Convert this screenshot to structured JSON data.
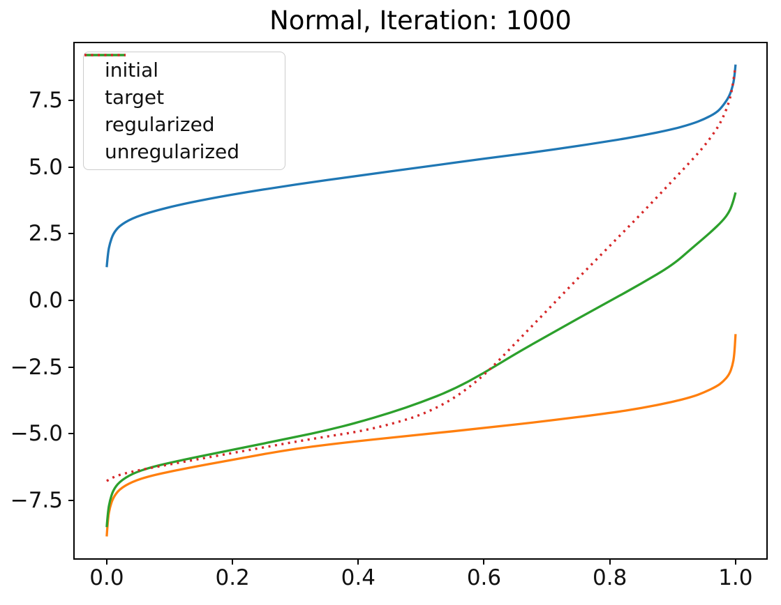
{
  "figure": {
    "background_color": "#ffffff",
    "spine_color": "#000000",
    "legend_border_color": "#cccccc"
  },
  "chart_data": {
    "type": "line",
    "title": "Normal, Iteration: 1000",
    "xlabel": "",
    "ylabel": "",
    "xlim": [
      -0.051,
      1.049
    ],
    "ylim": [
      -9.67,
      9.65
    ],
    "grid": false,
    "legend_position": "upper left",
    "xticks": [
      {
        "value": 0.0,
        "label": "0.0"
      },
      {
        "value": 0.2,
        "label": "0.2"
      },
      {
        "value": 0.4,
        "label": "0.4"
      },
      {
        "value": 0.6,
        "label": "0.6"
      },
      {
        "value": 0.8,
        "label": "0.8"
      },
      {
        "value": 1.0,
        "label": "1.0"
      }
    ],
    "yticks": [
      {
        "value": 7.5,
        "label": "7.5"
      },
      {
        "value": 5.0,
        "label": "5.0"
      },
      {
        "value": 2.5,
        "label": "2.5"
      },
      {
        "value": 0.0,
        "label": "0.0"
      },
      {
        "value": -2.5,
        "label": "−2.5"
      },
      {
        "value": -5.0,
        "label": "−5.0"
      },
      {
        "value": -7.5,
        "label": "−7.5"
      }
    ],
    "series": [
      {
        "name": "initial",
        "color": "#1f77b4",
        "style": "solid",
        "points": [
          [
            0,
            1.25
          ],
          [
            0.002,
            1.8
          ],
          [
            0.005,
            2.15
          ],
          [
            0.01,
            2.5
          ],
          [
            0.02,
            2.8
          ],
          [
            0.04,
            3.08
          ],
          [
            0.07,
            3.32
          ],
          [
            0.12,
            3.62
          ],
          [
            0.2,
            3.98
          ],
          [
            0.3,
            4.35
          ],
          [
            0.4,
            4.68
          ],
          [
            0.5,
            5.0
          ],
          [
            0.6,
            5.32
          ],
          [
            0.7,
            5.62
          ],
          [
            0.8,
            5.98
          ],
          [
            0.85,
            6.18
          ],
          [
            0.9,
            6.42
          ],
          [
            0.93,
            6.62
          ],
          [
            0.95,
            6.8
          ],
          [
            0.97,
            7.05
          ],
          [
            0.98,
            7.3
          ],
          [
            0.99,
            7.65
          ],
          [
            0.995,
            8.0
          ],
          [
            0.998,
            8.35
          ],
          [
            1,
            8.85
          ]
        ]
      },
      {
        "name": "target",
        "color": "#ff7f0e",
        "style": "solid",
        "points": [
          [
            0,
            -8.85
          ],
          [
            0.002,
            -8.15
          ],
          [
            0.005,
            -7.75
          ],
          [
            0.01,
            -7.4
          ],
          [
            0.02,
            -7.08
          ],
          [
            0.04,
            -6.8
          ],
          [
            0.07,
            -6.57
          ],
          [
            0.12,
            -6.32
          ],
          [
            0.2,
            -5.97
          ],
          [
            0.3,
            -5.55
          ],
          [
            0.4,
            -5.27
          ],
          [
            0.5,
            -5.03
          ],
          [
            0.6,
            -4.78
          ],
          [
            0.7,
            -4.52
          ],
          [
            0.8,
            -4.22
          ],
          [
            0.85,
            -4.04
          ],
          [
            0.9,
            -3.8
          ],
          [
            0.93,
            -3.62
          ],
          [
            0.95,
            -3.45
          ],
          [
            0.97,
            -3.22
          ],
          [
            0.98,
            -3.05
          ],
          [
            0.99,
            -2.78
          ],
          [
            0.995,
            -2.45
          ],
          [
            0.998,
            -2.05
          ],
          [
            1,
            -1.26
          ]
        ]
      },
      {
        "name": "regularized",
        "color": "#2ca02c",
        "style": "solid",
        "points": [
          [
            0,
            -8.5
          ],
          [
            0.002,
            -7.9
          ],
          [
            0.005,
            -7.5
          ],
          [
            0.01,
            -7.12
          ],
          [
            0.02,
            -6.8
          ],
          [
            0.04,
            -6.5
          ],
          [
            0.07,
            -6.25
          ],
          [
            0.12,
            -5.98
          ],
          [
            0.2,
            -5.6
          ],
          [
            0.3,
            -5.12
          ],
          [
            0.35,
            -4.87
          ],
          [
            0.4,
            -4.57
          ],
          [
            0.45,
            -4.22
          ],
          [
            0.5,
            -3.82
          ],
          [
            0.55,
            -3.35
          ],
          [
            0.6,
            -2.72
          ],
          [
            0.65,
            -2.0
          ],
          [
            0.7,
            -1.33
          ],
          [
            0.75,
            -0.67
          ],
          [
            0.8,
            -0.02
          ],
          [
            0.85,
            0.63
          ],
          [
            0.9,
            1.33
          ],
          [
            0.93,
            1.95
          ],
          [
            0.96,
            2.55
          ],
          [
            0.98,
            3.0
          ],
          [
            0.99,
            3.32
          ],
          [
            0.995,
            3.62
          ],
          [
            1,
            4.05
          ]
        ]
      },
      {
        "name": "unregularized",
        "color": "#d62728",
        "style": "dotted",
        "points": [
          [
            0,
            -6.77
          ],
          [
            0.01,
            -6.63
          ],
          [
            0.02,
            -6.54
          ],
          [
            0.04,
            -6.42
          ],
          [
            0.07,
            -6.28
          ],
          [
            0.12,
            -6.06
          ],
          [
            0.2,
            -5.72
          ],
          [
            0.3,
            -5.3
          ],
          [
            0.35,
            -5.1
          ],
          [
            0.4,
            -4.92
          ],
          [
            0.45,
            -4.65
          ],
          [
            0.5,
            -4.3
          ],
          [
            0.55,
            -3.72
          ],
          [
            0.6,
            -2.82
          ],
          [
            0.65,
            -1.6
          ],
          [
            0.7,
            -0.38
          ],
          [
            0.75,
            0.85
          ],
          [
            0.8,
            2.05
          ],
          [
            0.85,
            3.25
          ],
          [
            0.9,
            4.5
          ],
          [
            0.93,
            5.25
          ],
          [
            0.95,
            5.78
          ],
          [
            0.97,
            6.42
          ],
          [
            0.98,
            6.85
          ],
          [
            0.99,
            7.45
          ],
          [
            0.995,
            8.0
          ],
          [
            1,
            8.8
          ]
        ]
      }
    ]
  }
}
